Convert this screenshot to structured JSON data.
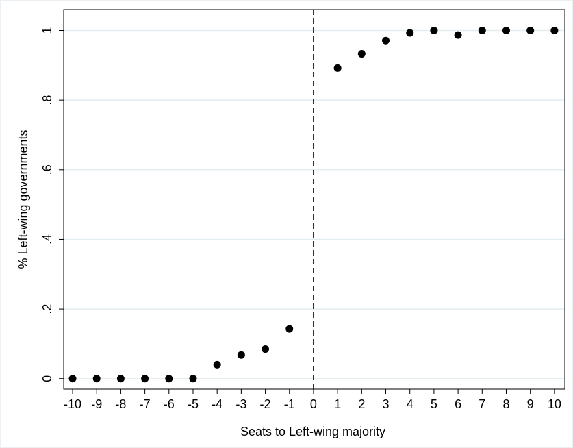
{
  "chart_data": {
    "type": "scatter",
    "x_label": "Seats to Left-wing majority",
    "y_label": "% Left-wing governments",
    "x": [
      -10,
      -9,
      -8,
      -7,
      -6,
      -5,
      -4,
      -3,
      -2,
      -1,
      1,
      2,
      3,
      4,
      5,
      6,
      7,
      8,
      9,
      10
    ],
    "values": [
      0,
      0,
      0,
      0,
      0,
      0,
      0.04,
      0.068,
      0.085,
      0.143,
      0.892,
      0.933,
      0.971,
      0.993,
      1.0,
      0.987,
      1,
      1,
      1,
      1
    ],
    "color": "#000000",
    "xlim": [
      -10.37,
      10.43
    ],
    "ylim": [
      -0.03,
      1.06
    ],
    "xticks": [
      -10,
      -9,
      -8,
      -7,
      -6,
      -5,
      -4,
      -3,
      -2,
      -1,
      0,
      1,
      2,
      3,
      4,
      5,
      6,
      7,
      8,
      9,
      10
    ],
    "yticks": [
      0,
      {
        "value": 0.2,
        "label": ".2"
      },
      {
        "value": 0.4,
        "label": ".4"
      },
      {
        "value": 0.6,
        "label": ".6"
      },
      {
        "value": 0.8,
        "label": ".8"
      },
      1
    ],
    "vline": 0,
    "grid": true
  }
}
